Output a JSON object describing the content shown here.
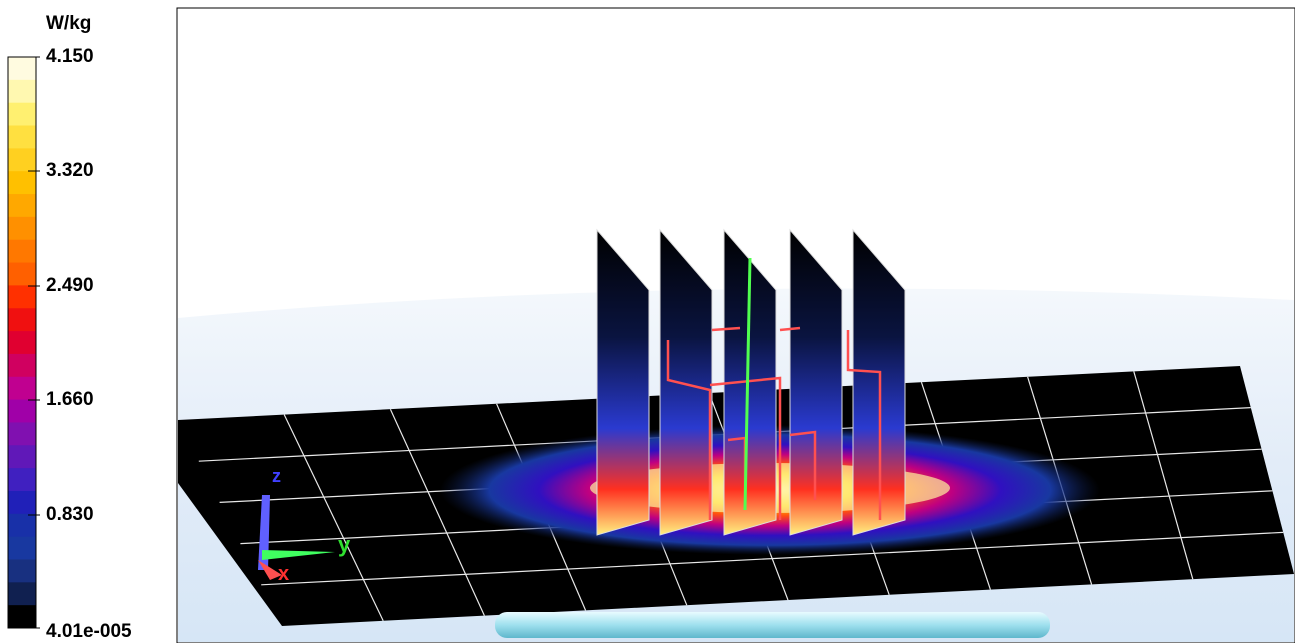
{
  "legend": {
    "unit": "W/kg",
    "labels": [
      "4.150",
      "3.320",
      "2.490",
      "1.660",
      "0.830",
      "4.01e-005"
    ]
  },
  "axes": {
    "z": "z",
    "y": "y",
    "x": "x"
  }
}
